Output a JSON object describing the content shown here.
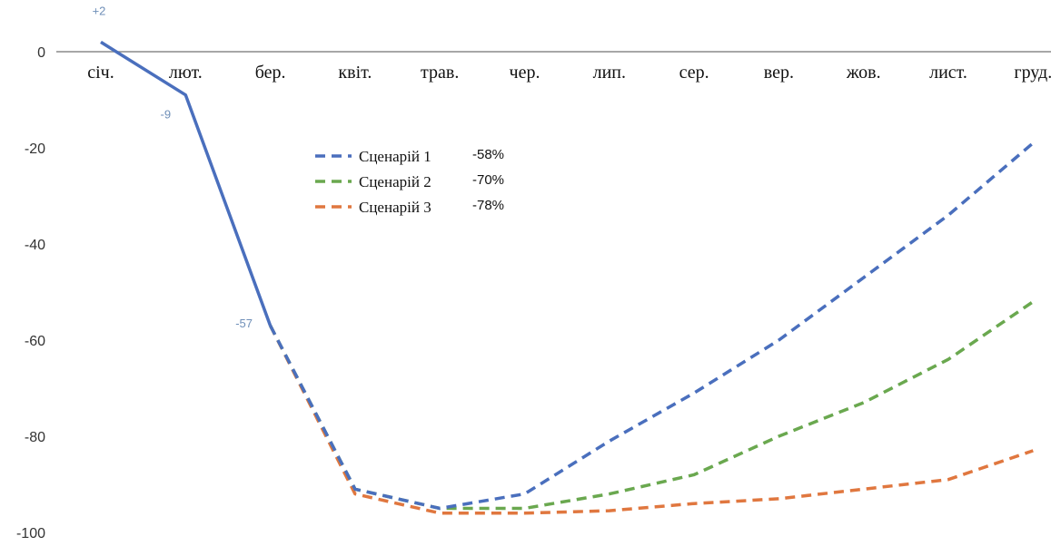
{
  "chart_data": {
    "type": "line",
    "categories": [
      "січ.",
      "лют.",
      "бер.",
      "квіт.",
      "трав.",
      "чер.",
      "лип.",
      "сер.",
      "вер.",
      "жов.",
      "лист.",
      "груд."
    ],
    "ylim": [
      -100,
      0
    ],
    "yticks": [
      0,
      -20,
      -40,
      -60,
      -80,
      -100
    ],
    "grid": false,
    "legend_position": "center-left",
    "actual": {
      "color": "#4a6fbd",
      "values": [
        2,
        -9,
        -57
      ],
      "labels": [
        "+2",
        "-9",
        "-57"
      ]
    },
    "series": [
      {
        "name": "Сценарій 1",
        "pct": "-58%",
        "color": "#4a6fbd",
        "values": [
          null,
          null,
          -57,
          -91,
          -95,
          -92,
          -81,
          -71,
          -60,
          -47,
          -34,
          -19
        ]
      },
      {
        "name": "Сценарій 2",
        "pct": "-70%",
        "color": "#6aa84f",
        "values": [
          null,
          null,
          -57,
          -91,
          -95,
          -95,
          -92,
          -88,
          -80,
          -73,
          -64,
          -52
        ]
      },
      {
        "name": "Сценарій 3",
        "pct": "-78%",
        "color": "#e0773f",
        "values": [
          null,
          null,
          -57,
          -92,
          -96,
          -96,
          -95.5,
          -94,
          -93,
          -91,
          -89,
          -83
        ]
      }
    ]
  }
}
